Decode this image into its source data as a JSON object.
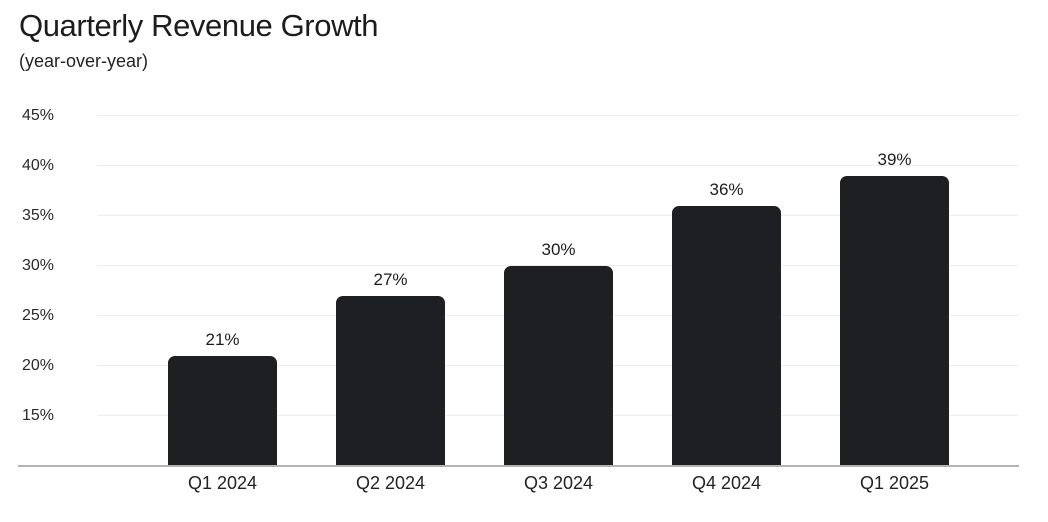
{
  "header": {
    "title": "Quarterly Revenue Growth",
    "subtitle": "(year-over-year)"
  },
  "chart_data": {
    "type": "bar",
    "title": "Quarterly Revenue Growth",
    "subtitle": "(year-over-year)",
    "categories": [
      "Q1 2024",
      "Q2 2024",
      "Q3 2024",
      "Q4 2024",
      "Q1 2025"
    ],
    "values": [
      21,
      27,
      30,
      36,
      39
    ],
    "value_labels": [
      "21%",
      "27%",
      "30%",
      "36%",
      "39%"
    ],
    "xlabel": "",
    "ylabel": "",
    "ylim": [
      10,
      45
    ],
    "yticks": [
      15,
      20,
      25,
      30,
      35,
      40,
      45
    ],
    "ytick_labels": [
      "15%",
      "20%",
      "25%",
      "30%",
      "35%",
      "40%",
      "45%"
    ],
    "grid": true,
    "legend": "none",
    "colors": {
      "bar": "#1e1f23",
      "gridline": "#ededed",
      "axis_line": "#b2b2b2",
      "title_text": "#1c1c1e",
      "label_text": "#232325",
      "background": "#ffffff"
    }
  }
}
